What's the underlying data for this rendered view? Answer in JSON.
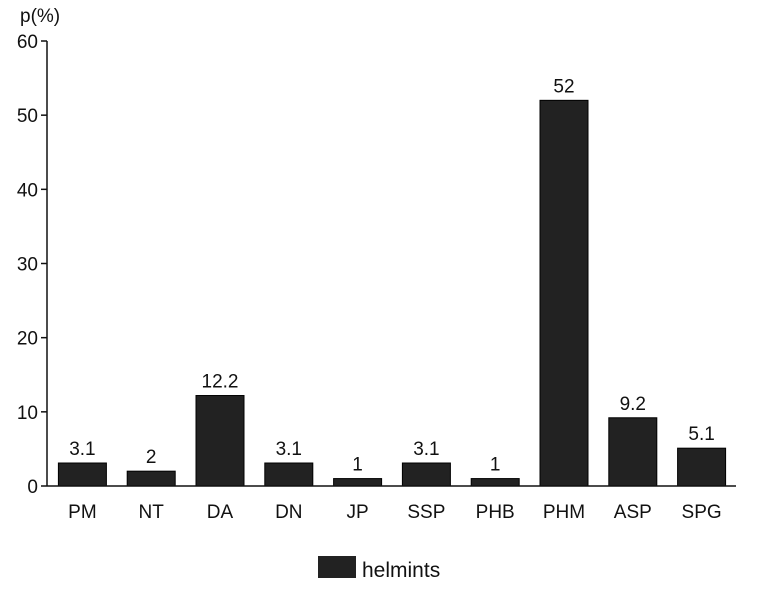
{
  "chart_data": {
    "type": "bar",
    "ylabel": "p(%)",
    "xlabel": "",
    "ylim": [
      0,
      60
    ],
    "yticks": [
      0,
      10,
      20,
      30,
      40,
      50,
      60
    ],
    "categories": [
      "PM",
      "NT",
      "DA",
      "DN",
      "JP",
      "SSP",
      "PHB",
      "PHM",
      "ASP",
      "SPG"
    ],
    "series": [
      {
        "name": "helmints",
        "values": [
          3.1,
          2,
          12.2,
          3.1,
          1,
          3.1,
          1,
          52,
          9.2,
          5.1
        ],
        "labels": [
          "3.1",
          "2",
          "12.2",
          "3.1",
          "1",
          "3.1",
          "1",
          "52",
          "9.2",
          "5.1"
        ],
        "color": "#222222"
      }
    ],
    "legend_position": "bottom-center",
    "grid": false
  }
}
